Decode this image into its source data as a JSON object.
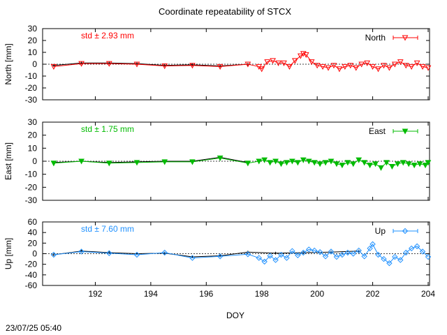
{
  "chart_data": {
    "title": "Coordinate repeatability of STCX",
    "xlabel": "DOY",
    "timestamp": "23/07/25 05:40",
    "xlim": [
      190.1,
      204.05
    ],
    "xticks": [
      "192",
      "194",
      "196",
      "198",
      "200",
      "202",
      "204"
    ],
    "panels": [
      {
        "type": "line",
        "component": "North",
        "ylabel": "North [mm]",
        "std_label": "std ± 2.93 mm",
        "legend": "North",
        "color": "#ff0000",
        "marker": "triangle-down-open",
        "ylim": [
          -30,
          30
        ],
        "yticks": [
          "30",
          "20",
          "10",
          "0",
          "-10",
          "-20",
          "-30"
        ],
        "reference": {
          "x": [
            190.5,
            191.5,
            192.5,
            193.5,
            194.5,
            195.5,
            196.5,
            197.5
          ],
          "y": [
            -1,
            1,
            1,
            0.5,
            -1,
            -0.5,
            -1.5,
            0
          ]
        },
        "series": {
          "x": [
            190.5,
            191.5,
            192.5,
            193.5,
            194.5,
            195.5,
            196.5,
            197.5,
            197.9,
            198.0,
            198.2,
            198.4,
            198.6,
            198.8,
            199.0,
            199.2,
            199.4,
            199.5,
            199.6,
            199.8,
            200.0,
            200.2,
            200.4,
            200.6,
            200.8,
            201.0,
            201.2,
            201.4,
            201.6,
            201.8,
            202.0,
            202.2,
            202.4,
            202.6,
            202.8,
            203.0,
            203.2,
            203.4,
            203.6,
            203.8,
            204.0
          ],
          "y": [
            -2,
            0.5,
            0.5,
            0,
            -1.5,
            -1,
            -2,
            0,
            -2,
            -4,
            2,
            3,
            1,
            1,
            -2,
            3,
            7,
            9,
            8,
            2,
            -1,
            -2,
            -3,
            -1,
            -4,
            -2,
            -1,
            -3,
            0,
            1,
            -2,
            -4,
            -1,
            -3,
            0,
            2,
            -1,
            -2,
            1,
            -2,
            -3
          ]
        }
      },
      {
        "type": "line",
        "component": "East",
        "ylabel": "East [mm]",
        "std_label": "std ± 1.75 mm",
        "legend": "East",
        "color": "#00bb00",
        "marker": "triangle-down-filled",
        "ylim": [
          -30,
          30
        ],
        "yticks": [
          "30",
          "20",
          "10",
          "0",
          "-10",
          "-20",
          "-30"
        ],
        "reference": {
          "x": [
            190.5,
            191.5,
            192.5,
            193.5,
            194.5,
            195.5,
            196.5,
            197.5
          ],
          "y": [
            -1,
            0,
            -1,
            -0.5,
            0,
            0,
            3,
            -1
          ]
        },
        "series": {
          "x": [
            190.5,
            191.5,
            192.5,
            193.5,
            194.5,
            195.5,
            196.5,
            197.5,
            197.9,
            198.1,
            198.3,
            198.5,
            198.7,
            198.9,
            199.1,
            199.3,
            199.5,
            199.7,
            199.9,
            200.1,
            200.3,
            200.5,
            200.7,
            200.9,
            201.1,
            201.3,
            201.5,
            201.7,
            201.9,
            202.1,
            202.3,
            202.5,
            202.7,
            202.9,
            203.1,
            203.3,
            203.5,
            203.7,
            203.9,
            204.0
          ],
          "y": [
            -1.5,
            0,
            -1.5,
            -1,
            -0.5,
            -0.5,
            2.5,
            -1.5,
            0,
            1,
            -1,
            0,
            -2,
            -1,
            0,
            -1,
            1,
            0,
            -1,
            -2,
            -1,
            0,
            -2,
            -3,
            -1,
            -2,
            1,
            -1,
            -3,
            -2,
            -5,
            -1,
            -4,
            -2,
            -1,
            -2,
            -3,
            -2,
            -3,
            -1
          ]
        }
      },
      {
        "type": "line",
        "component": "Up",
        "ylabel": "Up [mm]",
        "std_label": "std ± 7.60 mm",
        "legend": "Up",
        "color": "#1e90ff",
        "marker": "diamond-open",
        "ylim": [
          -60,
          60
        ],
        "yticks": [
          "60",
          "40",
          "20",
          "0",
          "-20",
          "-40",
          "-60"
        ],
        "reference": {
          "x": [
            190.5,
            191.5,
            192.5,
            193.5,
            194.5,
            195.5,
            196.5,
            197.5,
            198.5,
            199.5,
            200.5,
            201.5
          ],
          "y": [
            -2,
            5,
            2,
            0,
            1,
            -6,
            -4,
            3,
            1,
            2,
            3,
            5
          ]
        },
        "series": {
          "x": [
            190.5,
            191.5,
            192.5,
            193.5,
            194.5,
            195.5,
            196.5,
            197.5,
            197.9,
            198.1,
            198.3,
            198.5,
            198.7,
            198.9,
            199.1,
            199.3,
            199.5,
            199.7,
            199.9,
            200.1,
            200.3,
            200.5,
            200.7,
            200.9,
            201.1,
            201.3,
            201.5,
            201.7,
            201.9,
            202.0,
            202.2,
            202.4,
            202.6,
            202.8,
            203.0,
            203.2,
            203.4,
            203.6,
            203.8,
            204.0
          ],
          "y": [
            -2,
            4,
            1,
            -2,
            2,
            -8,
            -5,
            -1,
            -8,
            -15,
            -4,
            -12,
            -2,
            -8,
            5,
            -3,
            2,
            8,
            6,
            3,
            -5,
            4,
            -6,
            -2,
            2,
            0,
            6,
            -5,
            10,
            18,
            -2,
            -10,
            -18,
            -6,
            -12,
            2,
            10,
            14,
            4,
            -6
          ]
        }
      }
    ]
  }
}
